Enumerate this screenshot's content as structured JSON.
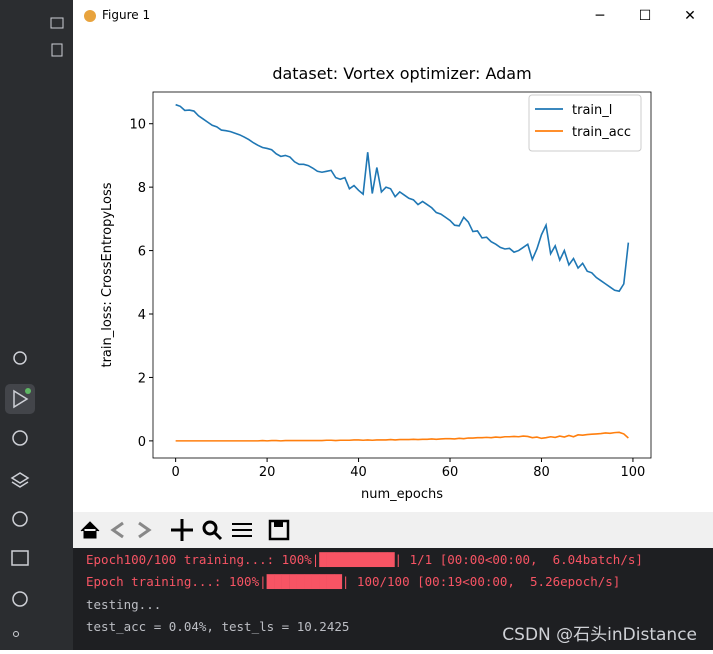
{
  "window": {
    "title": "Figure 1"
  },
  "chart_data": {
    "type": "line",
    "title": "dataset: Vortex optimizer: Adam",
    "x_label": "num_epochs",
    "y_label": "train_loss: CrossEntropyLoss",
    "x": [
      0,
      1,
      2,
      3,
      4,
      5,
      6,
      7,
      8,
      9,
      10,
      11,
      12,
      13,
      14,
      15,
      16,
      17,
      18,
      19,
      20,
      21,
      22,
      23,
      24,
      25,
      26,
      27,
      28,
      29,
      30,
      31,
      32,
      33,
      34,
      35,
      36,
      37,
      38,
      39,
      40,
      41,
      42,
      43,
      44,
      45,
      46,
      47,
      48,
      49,
      50,
      51,
      52,
      53,
      54,
      55,
      56,
      57,
      58,
      59,
      60,
      61,
      62,
      63,
      64,
      65,
      66,
      67,
      68,
      69,
      70,
      71,
      72,
      73,
      74,
      75,
      76,
      77,
      78,
      79,
      80,
      81,
      82,
      83,
      84,
      85,
      86,
      87,
      88,
      89,
      90,
      91,
      92,
      93,
      94,
      95,
      96,
      97,
      98,
      99
    ],
    "series": [
      {
        "name": "train_l",
        "color": "#1f77b4",
        "values": [
          10.6,
          10.55,
          10.42,
          10.43,
          10.4,
          10.25,
          10.15,
          10.05,
          9.95,
          9.9,
          9.8,
          9.78,
          9.75,
          9.7,
          9.65,
          9.58,
          9.5,
          9.4,
          9.32,
          9.25,
          9.22,
          9.18,
          9.05,
          8.97,
          9.0,
          8.95,
          8.8,
          8.72,
          8.72,
          8.68,
          8.6,
          8.5,
          8.47,
          8.5,
          8.53,
          8.3,
          8.25,
          8.3,
          7.95,
          8.05,
          7.9,
          7.78,
          9.1,
          7.8,
          8.62,
          7.85,
          8.0,
          7.95,
          7.7,
          7.85,
          7.75,
          7.65,
          7.6,
          7.45,
          7.55,
          7.45,
          7.35,
          7.2,
          7.15,
          7.05,
          6.95,
          6.8,
          6.78,
          7.05,
          6.9,
          6.6,
          6.62,
          6.4,
          6.42,
          6.28,
          6.2,
          6.1,
          6.05,
          6.07,
          5.95,
          6.0,
          6.1,
          6.2,
          5.72,
          6.05,
          6.5,
          6.8,
          5.9,
          6.15,
          5.7,
          6.0,
          5.55,
          5.75,
          5.45,
          5.6,
          5.35,
          5.3,
          5.15,
          5.05,
          4.95,
          4.85,
          4.75,
          4.72,
          4.95,
          6.25
        ]
      },
      {
        "name": "train_acc",
        "color": "#ff7f0e",
        "values": [
          0.0,
          0.0,
          0.0,
          0.0,
          0.0,
          0.0,
          0.0,
          0.0,
          0.0,
          0.0,
          0.0,
          0.0,
          0.0,
          0.0,
          0.0,
          0.0,
          0.0,
          0.0,
          0.0,
          0.01,
          0.0,
          0.01,
          0.01,
          0.0,
          0.01,
          0.01,
          0.01,
          0.01,
          0.01,
          0.01,
          0.01,
          0.01,
          0.01,
          0.02,
          0.02,
          0.01,
          0.02,
          0.02,
          0.02,
          0.03,
          0.03,
          0.02,
          0.03,
          0.02,
          0.03,
          0.03,
          0.03,
          0.04,
          0.03,
          0.04,
          0.04,
          0.04,
          0.05,
          0.04,
          0.05,
          0.05,
          0.06,
          0.05,
          0.06,
          0.07,
          0.07,
          0.06,
          0.08,
          0.07,
          0.09,
          0.09,
          0.1,
          0.1,
          0.11,
          0.1,
          0.12,
          0.11,
          0.13,
          0.13,
          0.14,
          0.13,
          0.15,
          0.14,
          0.1,
          0.12,
          0.08,
          0.1,
          0.13,
          0.11,
          0.15,
          0.12,
          0.17,
          0.13,
          0.19,
          0.18,
          0.2,
          0.21,
          0.22,
          0.23,
          0.25,
          0.24,
          0.26,
          0.27,
          0.22,
          0.09
        ]
      }
    ],
    "xlim": [
      -4.95,
      103.95
    ],
    "ylim": [
      -0.54,
      11.0
    ],
    "xticks": [
      0,
      20,
      40,
      60,
      80,
      100
    ],
    "yticks": [
      0,
      2,
      4,
      6,
      8,
      10
    ],
    "legend": "upper right"
  },
  "console": {
    "lines": [
      "Epoch100/100 training...: 100%|██████████| 1/1 [00:00<00:00,  6.04batch/s]",
      "Epoch training...: 100%|██████████| 100/100 [00:19<00:00,  5.26epoch/s]",
      "testing...",
      "test_acc = 0.04%, test_ls = 10.2425"
    ]
  },
  "watermark": "CSDN @石头inDistance"
}
